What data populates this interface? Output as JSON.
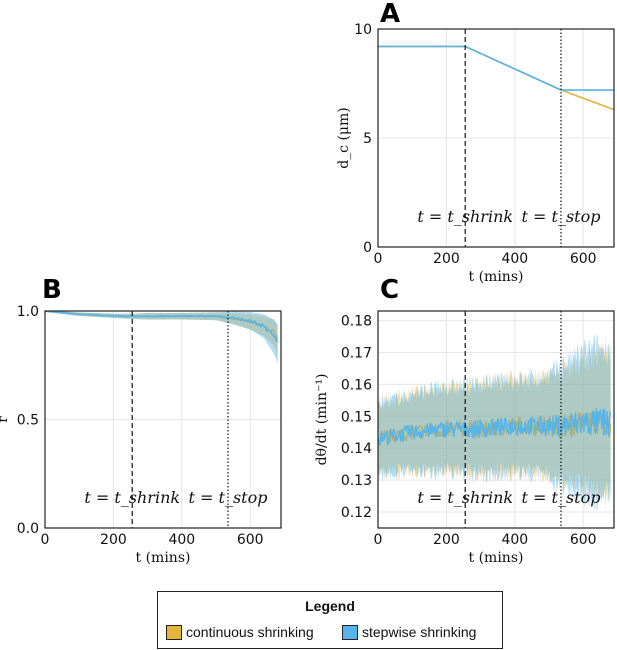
{
  "colors": {
    "continuous": "#E6B33C",
    "stepwise": "#56B4E9"
  },
  "legend": {
    "title": "Legend",
    "items": [
      {
        "label": "continuous shrinking",
        "color": "#E6B33C"
      },
      {
        "label": "stepwise shrinking",
        "color": "#56B4E9"
      }
    ]
  },
  "chart_data": [
    {
      "panel": "A",
      "type": "line",
      "ylabel": "d_c (μm)",
      "xlabel": "t (mins)",
      "xlim": [
        0,
        690
      ],
      "ylim": [
        0,
        10
      ],
      "xticks": [
        0,
        200,
        400,
        600
      ],
      "yticks": [
        0,
        5,
        10
      ],
      "annotations": [
        {
          "text": "t = t_shrink",
          "x": 255,
          "style": "dashed"
        },
        {
          "text": "t = t_stop",
          "x": 535,
          "style": "dotted"
        }
      ],
      "series": [
        {
          "name": "continuous shrinking",
          "color": "#E6B33C",
          "x": [
            0,
            255,
            535,
            690
          ],
          "y": [
            9.2,
            9.2,
            7.2,
            6.3
          ]
        },
        {
          "name": "stepwise shrinking",
          "color": "#56B4E9",
          "x": [
            0,
            255,
            535,
            690
          ],
          "y": [
            9.2,
            9.2,
            7.2,
            7.2
          ]
        }
      ]
    },
    {
      "panel": "B",
      "type": "line",
      "ylabel": "r",
      "xlabel": "t (mins)",
      "xlim": [
        0,
        690
      ],
      "ylim": [
        0,
        1.0
      ],
      "xticks": [
        0,
        200,
        400,
        600
      ],
      "yticks": [
        0.0,
        0.5,
        1.0
      ],
      "annotations": [
        {
          "text": "t = t_shrink",
          "x": 255,
          "style": "dashed"
        },
        {
          "text": "t = t_stop",
          "x": 535,
          "style": "dotted"
        }
      ],
      "series": [
        {
          "name": "continuous shrinking",
          "color": "#E6B33C",
          "x": [
            0,
            100,
            200,
            255,
            300,
            400,
            500,
            550,
            600,
            640,
            670,
            680
          ],
          "y": [
            1.0,
            0.985,
            0.978,
            0.975,
            0.975,
            0.976,
            0.975,
            0.965,
            0.95,
            0.93,
            0.9,
            0.86
          ],
          "band": [
            0.005,
            0.008,
            0.01,
            0.012,
            0.015,
            0.015,
            0.018,
            0.025,
            0.035,
            0.045,
            0.06,
            0.07
          ]
        },
        {
          "name": "stepwise shrinking",
          "color": "#56B4E9",
          "x": [
            0,
            100,
            200,
            255,
            300,
            400,
            500,
            550,
            600,
            640,
            670,
            680
          ],
          "y": [
            1.0,
            0.985,
            0.978,
            0.975,
            0.976,
            0.976,
            0.976,
            0.968,
            0.955,
            0.93,
            0.88,
            0.85
          ],
          "band": [
            0.005,
            0.008,
            0.01,
            0.012,
            0.015,
            0.015,
            0.018,
            0.03,
            0.04,
            0.055,
            0.08,
            0.09
          ]
        }
      ]
    },
    {
      "panel": "C",
      "type": "line",
      "ylabel": "dθ/dt (min⁻¹)",
      "xlabel": "t (mins)",
      "xlim": [
        0,
        690
      ],
      "ylim": [
        0.115,
        0.183
      ],
      "xticks": [
        0,
        200,
        400,
        600
      ],
      "yticks": [
        0.12,
        0.13,
        0.14,
        0.15,
        0.16,
        0.17,
        0.18
      ],
      "annotations": [
        {
          "text": "t = t_shrink",
          "x": 255,
          "style": "dashed"
        },
        {
          "text": "t = t_stop",
          "x": 535,
          "style": "dotted"
        }
      ],
      "series": [
        {
          "name": "continuous shrinking",
          "color": "#E6B33C",
          "x": [
            0,
            100,
            200,
            255,
            300,
            400,
            500,
            535,
            600,
            680
          ],
          "y": [
            0.143,
            0.145,
            0.146,
            0.146,
            0.146,
            0.147,
            0.147,
            0.147,
            0.148,
            0.148
          ],
          "band": [
            0.01,
            0.011,
            0.012,
            0.012,
            0.013,
            0.013,
            0.014,
            0.016,
            0.018,
            0.02
          ]
        },
        {
          "name": "stepwise shrinking",
          "color": "#56B4E9",
          "x": [
            0,
            100,
            200,
            255,
            300,
            400,
            500,
            535,
            600,
            680
          ],
          "y": [
            0.143,
            0.145,
            0.146,
            0.146,
            0.146,
            0.147,
            0.147,
            0.147,
            0.148,
            0.148
          ],
          "band": [
            0.01,
            0.011,
            0.012,
            0.012,
            0.013,
            0.013,
            0.014,
            0.017,
            0.02,
            0.022
          ]
        }
      ]
    }
  ]
}
